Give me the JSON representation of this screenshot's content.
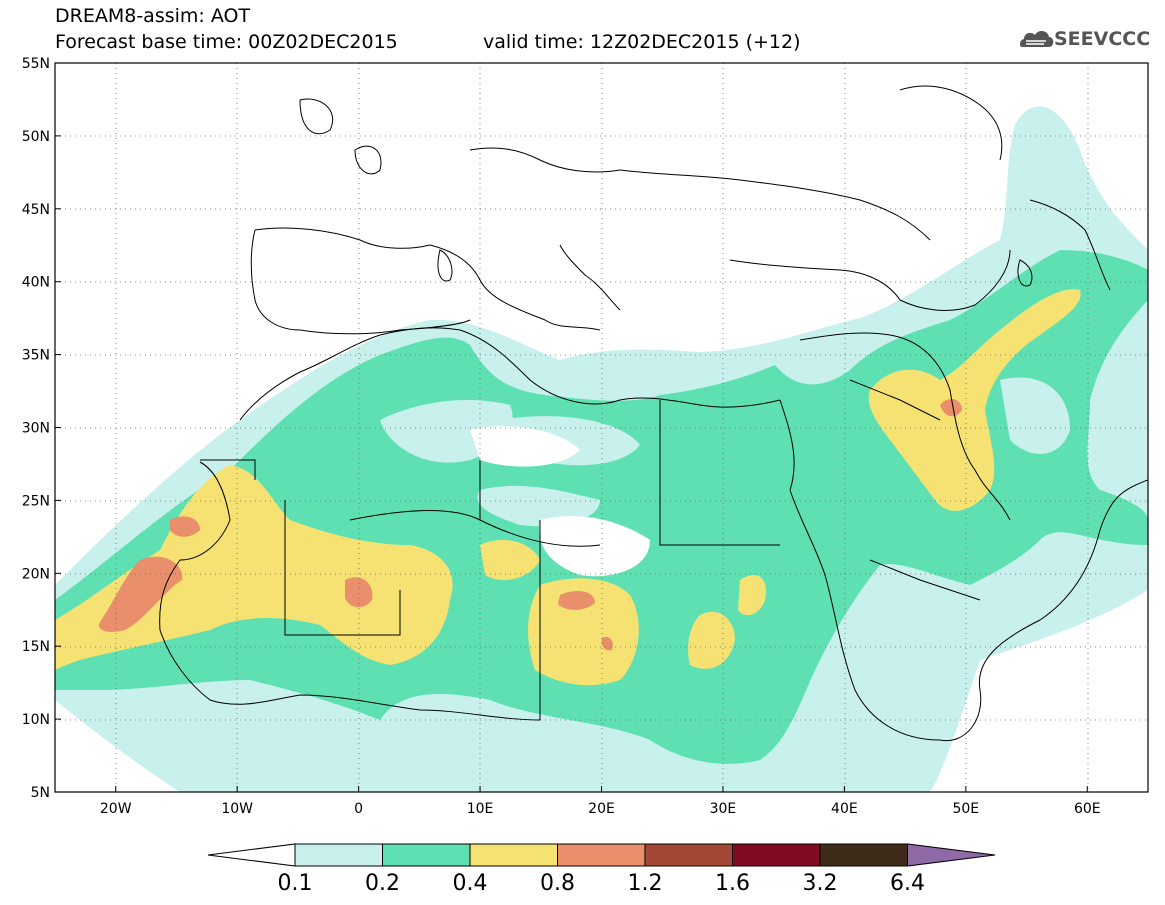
{
  "header": {
    "title": "DREAM8-assim: AOT",
    "base_time": "Forecast base time: 00Z02DEC2015",
    "valid_time": "valid time: 12Z02DEC2015 (+12)"
  },
  "logo": {
    "text": "SEEVCCC",
    "icon": "cloud-logo-icon"
  },
  "map": {
    "lon_range": [
      -25,
      65
    ],
    "lat_range": [
      5,
      55
    ],
    "lat_ticks": [
      "55N",
      "50N",
      "45N",
      "40N",
      "35N",
      "30N",
      "25N",
      "20N",
      "15N",
      "10N",
      "5N"
    ],
    "lon_ticks": [
      "20W",
      "10W",
      "0",
      "10E",
      "20E",
      "30E",
      "40E",
      "50E",
      "60E"
    ],
    "grid": true,
    "field_colors": {
      "0.1": "#c8f0ec",
      "0.2": "#5fe0b2",
      "0.4": "#f5e273",
      "0.8": "#ea8f6c",
      "1.2": "#c44f3a"
    }
  },
  "colorbar": {
    "levels": [
      "0.1",
      "0.2",
      "0.4",
      "0.8",
      "1.2",
      "1.6",
      "3.2",
      "6.4"
    ],
    "colors": [
      "#ffffff",
      "#c8f0ec",
      "#5fe0b2",
      "#f5e273",
      "#ea8f6c",
      "#a44836",
      "#800a22",
      "#3e2a18",
      "#8f6aa6"
    ]
  }
}
